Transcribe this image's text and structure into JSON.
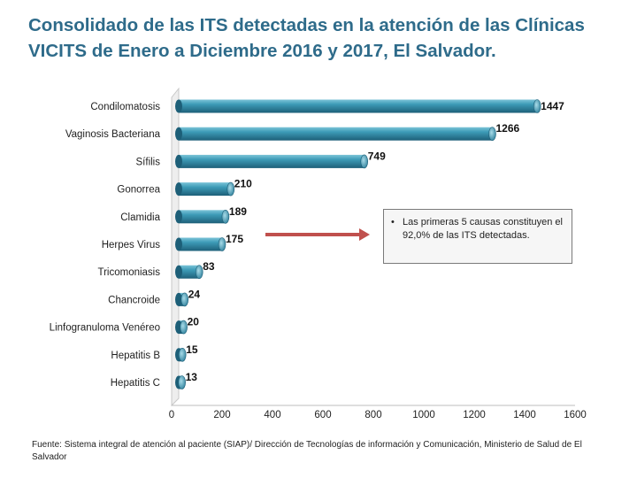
{
  "header": {
    "title_line1": "Consolidado de las ITS detectadas en la atención de las Clínicas",
    "title_line2": "VICITS de Enero a Diciembre 2016 y 2017, El Salvador."
  },
  "chart_data": {
    "type": "bar",
    "orientation": "horizontal",
    "categories": [
      "Condilomatosis",
      "Vaginosis Bacteriana",
      "Sífilis",
      "Gonorrea",
      "Clamidia",
      "Herpes Virus",
      "Tricomoniasis",
      "Chancroide",
      "Linfogranuloma Venéreo",
      "Hepatitis B",
      "Hepatitis C"
    ],
    "values": [
      1447,
      1266,
      749,
      210,
      189,
      175,
      83,
      24,
      20,
      15,
      13
    ],
    "xlim": [
      0,
      1600
    ],
    "xticks": [
      "0",
      "200",
      "400",
      "600",
      "800",
      "1000",
      "1200",
      "1400",
      "1600"
    ],
    "bar_color": "#2E8AA6",
    "title": "Consolidado de las ITS detectadas en la atención de las Clínicas VICITS de Enero a Diciembre 2016 y 2017, El Salvador.",
    "xlabel": "",
    "ylabel": ""
  },
  "callout": {
    "bullet": "•",
    "text": "Las primeras 5 causas constituyen el 92,0% de las ITS detectadas."
  },
  "footnote": "Fuente: Sistema integral de atención al paciente (SIAP)/ Dirección de Tecnologías de información y Comunicación, Ministerio de Salud de El Salvador"
}
